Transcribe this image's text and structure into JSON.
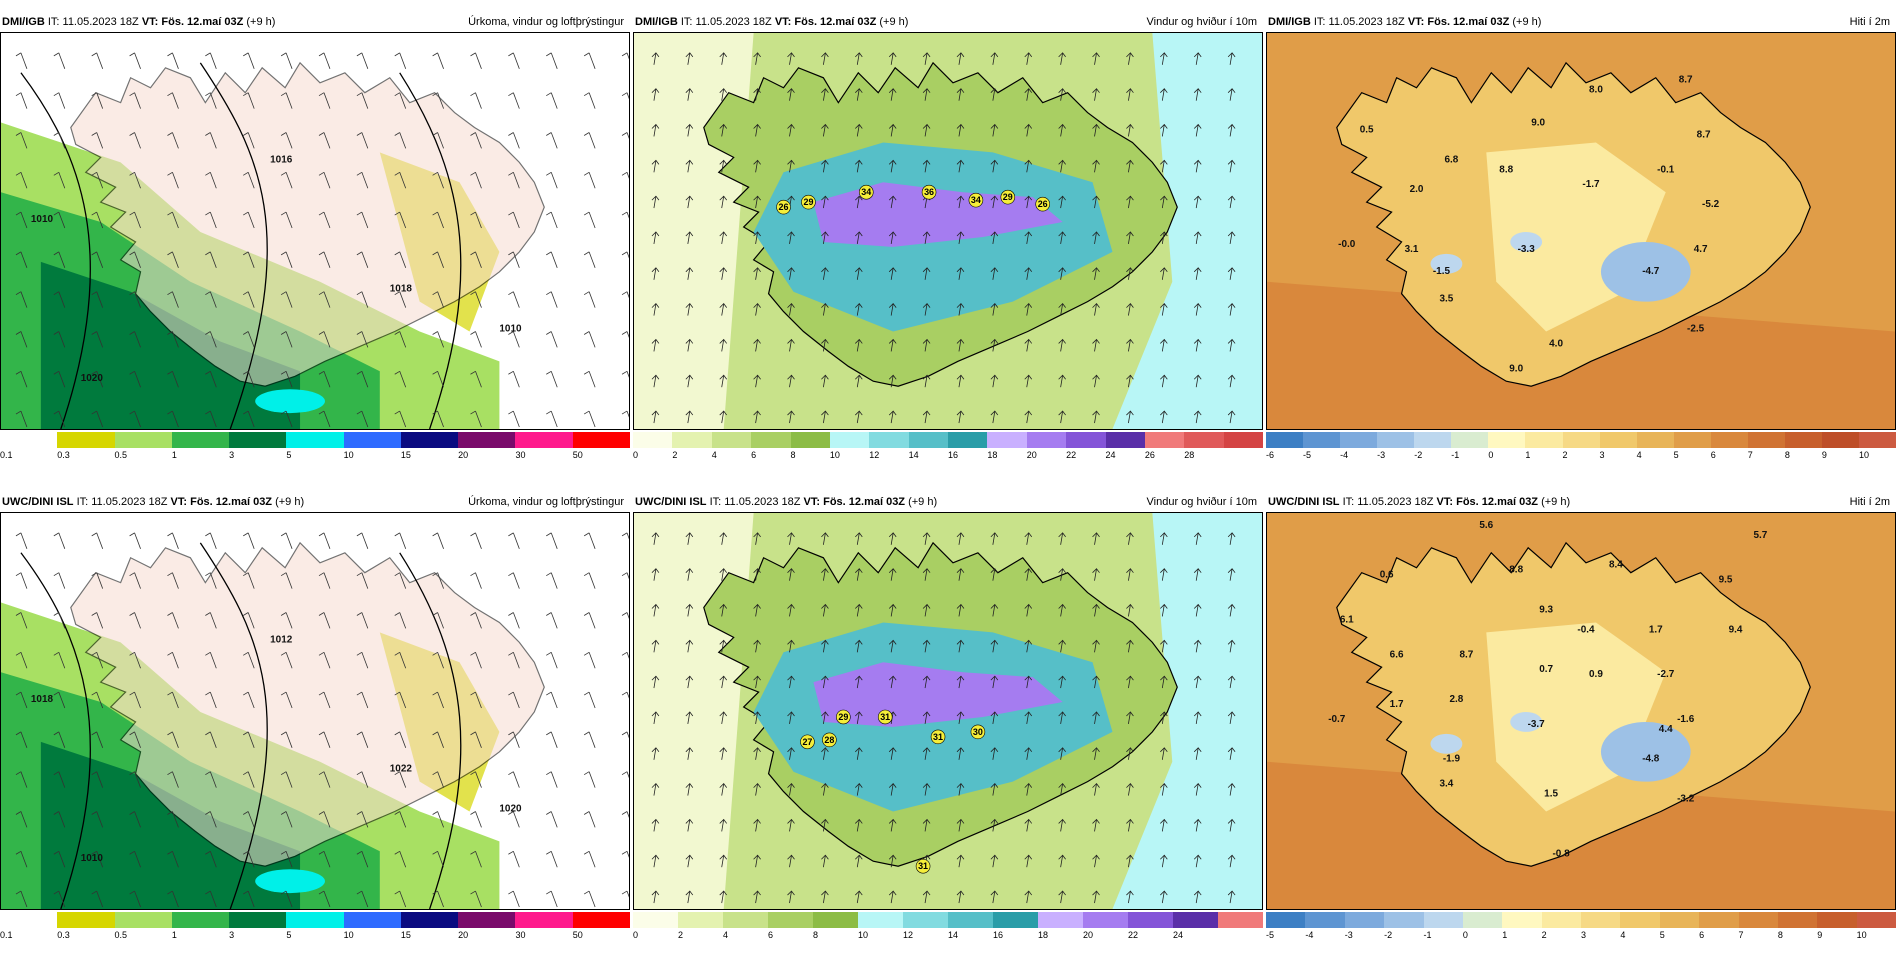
{
  "panels": [
    {
      "model": "DMI/IGB",
      "init": "IT: 11.05.2023 18Z",
      "vt": "VT: Fös. 12.maí 03Z",
      "lead": "(+9 h)",
      "title": "Úrkoma, vindur og loftþrýstingur",
      "type": "precip",
      "isobars": [
        "1010",
        "1016",
        "1018",
        "1020",
        "1010"
      ],
      "legend": {
        "colors": [
          "#ffffff",
          "#d6d600",
          "#a8e063",
          "#33b54a",
          "#007a3d",
          "#00f0e8",
          "#2e6bff",
          "#0a0a80",
          "#7a0a6b",
          "#ff1a8c",
          "#ff0000"
        ],
        "ticks": [
          "0.1",
          "0.3",
          "0.5",
          "1",
          "3",
          "5",
          "10",
          "15",
          "20",
          "30",
          "50"
        ]
      }
    },
    {
      "model": "DMI/IGB",
      "init": "IT: 11.05.2023 18Z",
      "vt": "VT: Fös. 12.maí 03Z",
      "lead": "(+9 h)",
      "title": "Vindur og hviður í 10m",
      "type": "wind",
      "gusts": [
        "26",
        "29",
        "34",
        "36",
        "34",
        "29",
        "26"
      ],
      "legend": {
        "colors": [
          "#fbfde8",
          "#e4f2b0",
          "#c8e28a",
          "#a9cf63",
          "#8cbc45",
          "#b8f6f6",
          "#82dbe0",
          "#56bfc8",
          "#2a9da8",
          "#c9b0ff",
          "#a57cf0",
          "#8454d8",
          "#5a2ea8",
          "#f07a7a",
          "#e05a5a",
          "#d44444"
        ],
        "ticks": [
          "0",
          "2",
          "4",
          "6",
          "8",
          "10",
          "12",
          "14",
          "16",
          "18",
          "20",
          "22",
          "24",
          "26",
          "28"
        ]
      }
    },
    {
      "model": "DMI/IGB",
      "init": "IT: 11.05.2023 18Z",
      "vt": "VT: Fös. 12.maí 03Z",
      "lead": "(+9 h)",
      "title": "Hiti í 2m",
      "type": "temp",
      "temps": [
        "0.5",
        "6.8",
        "8.8",
        "9.0",
        "8.0",
        "8.7",
        "8.7",
        "2.0",
        "-0.0",
        "3.1",
        "-1.5",
        "-3.3",
        "-1.7",
        "-0.1",
        "-5.2",
        "-4.7",
        "4.7",
        "3.5",
        "-2.5",
        "4.0",
        "9.0"
      ],
      "legend": {
        "colors": [
          "#3d7fc4",
          "#5e95d2",
          "#7daadd",
          "#9dc1e6",
          "#bdd7ee",
          "#d9ecd0",
          "#fff8c0",
          "#fbeaa0",
          "#f6d985",
          "#f0c86a",
          "#e8b458",
          "#e09d48",
          "#d9883c",
          "#d07333",
          "#c75f2c",
          "#be4e28",
          "#cc5a40"
        ],
        "ticks": [
          "-6",
          "-5",
          "-4",
          "-3",
          "-2",
          "-1",
          "0",
          "1",
          "2",
          "3",
          "4",
          "5",
          "6",
          "7",
          "8",
          "9",
          "10"
        ]
      }
    },
    {
      "model": "UWC/DINI ISL",
      "init": "IT: 11.05.2023 18Z",
      "vt": "VT: Fös. 12.maí 03Z",
      "lead": "(+9 h)",
      "title": "Úrkoma, vindur og loftþrýstingur",
      "type": "precip",
      "isobars": [
        "1018",
        "1012",
        "1022",
        "1010",
        "1020"
      ],
      "legend": {
        "colors": [
          "#ffffff",
          "#d6d600",
          "#a8e063",
          "#33b54a",
          "#007a3d",
          "#00f0e8",
          "#2e6bff",
          "#0a0a80",
          "#7a0a6b",
          "#ff1a8c",
          "#ff0000"
        ],
        "ticks": [
          "0.1",
          "0.3",
          "0.5",
          "1",
          "3",
          "5",
          "10",
          "15",
          "20",
          "30",
          "50"
        ]
      }
    },
    {
      "model": "UWC/DINI ISL",
      "init": "IT: 11.05.2023 18Z",
      "vt": "VT: Fös. 12.maí 03Z",
      "lead": "(+9 h)",
      "title": "Vindur og hviður í 10m",
      "type": "wind",
      "gusts": [
        "27",
        "28",
        "29",
        "31",
        "31",
        "30",
        "31"
      ],
      "legend": {
        "colors": [
          "#fbfde8",
          "#e4f2b0",
          "#c8e28a",
          "#a9cf63",
          "#8cbc45",
          "#b8f6f6",
          "#82dbe0",
          "#56bfc8",
          "#2a9da8",
          "#c9b0ff",
          "#a57cf0",
          "#8454d8",
          "#5a2ea8",
          "#f07a7a"
        ],
        "ticks": [
          "0",
          "2",
          "4",
          "6",
          "8",
          "10",
          "12",
          "14",
          "16",
          "18",
          "20",
          "22",
          "24"
        ]
      }
    },
    {
      "model": "UWC/DINI ISL",
      "init": "IT: 11.05.2023 18Z",
      "vt": "VT: Fös. 12.maí 03Z",
      "lead": "(+9 h)",
      "title": "Hiti í 2m",
      "type": "temp",
      "temps": [
        "5.6",
        "5.7",
        "0.6",
        "8.8",
        "8.4",
        "9.5",
        "6.1",
        "9.3",
        "-0.4",
        "1.7",
        "9.4",
        "6.6",
        "8.7",
        "0.7",
        "0.9",
        "-2.7",
        "1.7",
        "2.8",
        "-0.7",
        "-1.6",
        "-1.9",
        "-3.7",
        "-4.8",
        "4.4",
        "3.4",
        "1.5",
        "-3.2",
        "-0.8"
      ],
      "legend": {
        "colors": [
          "#3d7fc4",
          "#5e95d2",
          "#7daadd",
          "#9dc1e6",
          "#bdd7ee",
          "#d9ecd0",
          "#fff8c0",
          "#fbeaa0",
          "#f6d985",
          "#f0c86a",
          "#e8b458",
          "#e09d48",
          "#d9883c",
          "#d07333",
          "#c75f2c",
          "#cc5a40"
        ],
        "ticks": [
          "-5",
          "-4",
          "-3",
          "-2",
          "-1",
          "0",
          "1",
          "2",
          "3",
          "4",
          "5",
          "6",
          "7",
          "8",
          "9",
          "10"
        ]
      }
    }
  ]
}
